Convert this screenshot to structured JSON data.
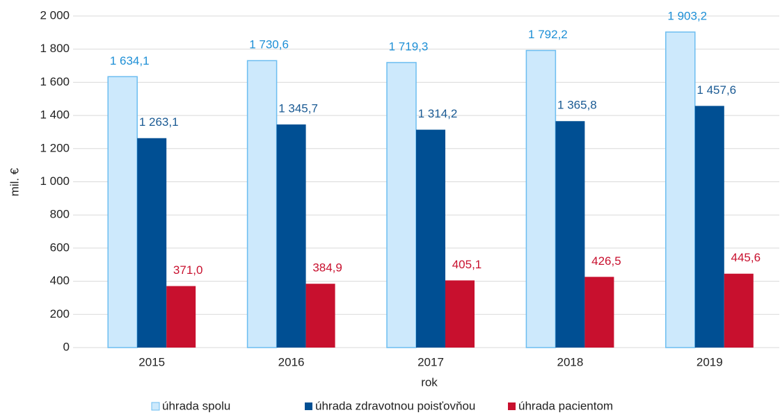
{
  "chart_data": {
    "type": "bar",
    "categories": [
      "2015",
      "2016",
      "2017",
      "2018",
      "2019"
    ],
    "series": [
      {
        "name": "úhrada spolu",
        "color": "#cde9fc",
        "border": "#6cbdf0",
        "label_color": "#1d8fd6",
        "values": [
          1634.1,
          1730.6,
          1719.3,
          1792.2,
          1903.2
        ],
        "value_labels": [
          "1 634,1",
          "1 730,6",
          "1 719,3",
          "1 792,2",
          "1 903,2"
        ]
      },
      {
        "name": "úhrada zdravotnou poisťovňou",
        "color": "#004f93",
        "label_color": "#1a5a93",
        "values": [
          1263.1,
          1345.7,
          1314.2,
          1365.8,
          1457.6
        ],
        "value_labels": [
          "1 263,1",
          "1 345,7",
          "1 314,2",
          "1 365,8",
          "1 457,6"
        ]
      },
      {
        "name": "úhrada pacientom",
        "color": "#c8102e",
        "label_color": "#c8102e",
        "values": [
          371.0,
          384.9,
          405.1,
          426.5,
          445.6
        ],
        "value_labels": [
          "371,0",
          "384,9",
          "405,1",
          "426,5",
          "445,6"
        ]
      }
    ],
    "xlabel": "rok",
    "ylabel": "mil. €",
    "ylim": [
      0,
      2000
    ],
    "yticks": [
      0,
      200,
      400,
      600,
      800,
      {
        "value": 1000,
        "label": "1 000"
      },
      {
        "value": 1200,
        "label": "1 200"
      },
      {
        "value": 1400,
        "label": "1 400"
      },
      {
        "value": 1600,
        "label": "1 600"
      },
      {
        "value": 1800,
        "label": "1 800"
      },
      {
        "value": 2000,
        "label": "2 000"
      }
    ],
    "grid": true,
    "legend": "bottom"
  }
}
